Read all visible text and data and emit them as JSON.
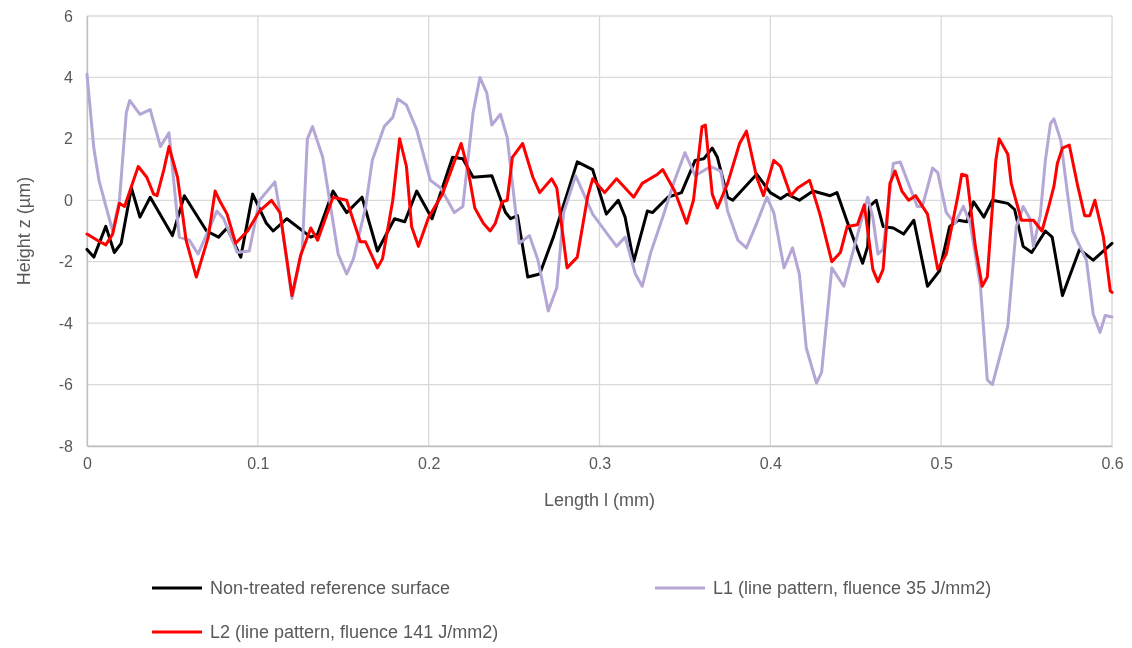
{
  "chart_data": {
    "type": "line",
    "xlabel": "Length l (mm)",
    "ylabel": "Height z (µm)",
    "xlim": [
      0,
      0.6
    ],
    "xticks": [
      0,
      0.1,
      0.2,
      0.3,
      0.4,
      0.5,
      0.6
    ],
    "ylim": [
      -8,
      6
    ],
    "yticks": [
      -8,
      -6,
      -4,
      -2,
      0,
      2,
      4,
      6
    ],
    "grid": true,
    "legend": "bottom",
    "line_style": "solid",
    "marker": "none",
    "series": [
      {
        "name": "Non-treated reference surface",
        "color": "#000000",
        "x": [
          0,
          0.004,
          0.011,
          0.016,
          0.02,
          0.026,
          0.031,
          0.037,
          0.05,
          0.057,
          0.07,
          0.077,
          0.082,
          0.09,
          0.097,
          0.105,
          0.109,
          0.117,
          0.131,
          0.135,
          0.144,
          0.152,
          0.161,
          0.17,
          0.18,
          0.186,
          0.193,
          0.202,
          0.214,
          0.22,
          0.226,
          0.237,
          0.245,
          0.248,
          0.252,
          0.258,
          0.265,
          0.273,
          0.287,
          0.296,
          0.304,
          0.311,
          0.315,
          0.32,
          0.328,
          0.331,
          0.34,
          0.348,
          0.356,
          0.361,
          0.366,
          0.369,
          0.375,
          0.378,
          0.392,
          0.4,
          0.406,
          0.41,
          0.417,
          0.425,
          0.435,
          0.439,
          0.445,
          0.454,
          0.457,
          0.458,
          0.462,
          0.466,
          0.472,
          0.478,
          0.484,
          0.492,
          0.499,
          0.505,
          0.51,
          0.515,
          0.519,
          0.525,
          0.53,
          0.539,
          0.543,
          0.548,
          0.553,
          0.561,
          0.565,
          0.571,
          0.581,
          0.589,
          0.6
        ],
        "values": [
          -1.6,
          -1.85,
          -0.85,
          -1.7,
          -1.4,
          0.4,
          -0.55,
          0.1,
          -1.15,
          0.15,
          -1.0,
          -1.2,
          -0.9,
          -1.85,
          0.2,
          -0.75,
          -1.0,
          -0.6,
          -1.2,
          -1.1,
          0.3,
          -0.4,
          0.1,
          -1.65,
          -0.6,
          -0.7,
          0.3,
          -0.6,
          1.4,
          1.35,
          0.75,
          0.8,
          -0.4,
          -0.6,
          -0.5,
          -2.5,
          -2.4,
          -1.2,
          1.25,
          1.0,
          -0.45,
          0.0,
          -0.55,
          -2.0,
          -0.35,
          -0.4,
          0.1,
          0.25,
          1.3,
          1.35,
          1.7,
          1.4,
          0.1,
          0.0,
          0.85,
          0.25,
          0.05,
          0.2,
          0.0,
          0.3,
          0.15,
          0.25,
          -0.7,
          -2.05,
          -1.5,
          -0.2,
          0.0,
          -0.85,
          -0.9,
          -1.1,
          -0.65,
          -2.8,
          -2.3,
          -0.85,
          -0.65,
          -0.7,
          -0.05,
          -0.55,
          0.0,
          -0.1,
          -0.3,
          -1.5,
          -1.7,
          -1.0,
          -1.2,
          -3.1,
          -1.6,
          -1.95,
          -1.4
        ]
      },
      {
        "name": "L1 (line pattern, fluence 35 J/mm2)",
        "color": "#b4a7d6",
        "x": [
          0,
          0.004,
          0.007,
          0.015,
          0.019,
          0.023,
          0.025,
          0.031,
          0.037,
          0.043,
          0.048,
          0.054,
          0.06,
          0.065,
          0.076,
          0.08,
          0.088,
          0.095,
          0.101,
          0.11,
          0.113,
          0.12,
          0.126,
          0.129,
          0.132,
          0.138,
          0.147,
          0.152,
          0.156,
          0.163,
          0.167,
          0.174,
          0.179,
          0.182,
          0.187,
          0.193,
          0.201,
          0.207,
          0.215,
          0.22,
          0.226,
          0.23,
          0.234,
          0.237,
          0.242,
          0.246,
          0.253,
          0.259,
          0.264,
          0.27,
          0.275,
          0.279,
          0.286,
          0.296,
          0.304,
          0.31,
          0.315,
          0.321,
          0.325,
          0.33,
          0.337,
          0.344,
          0.35,
          0.356,
          0.365,
          0.371,
          0.375,
          0.381,
          0.386,
          0.392,
          0.398,
          0.402,
          0.408,
          0.413,
          0.417,
          0.421,
          0.427,
          0.43,
          0.436,
          0.443,
          0.448,
          0.457,
          0.46,
          0.463,
          0.466,
          0.472,
          0.476,
          0.486,
          0.489,
          0.495,
          0.498,
          0.503,
          0.508,
          0.513,
          0.517,
          0.523,
          0.527,
          0.53,
          0.539,
          0.544,
          0.548,
          0.552,
          0.554,
          0.558,
          0.561,
          0.564,
          0.566,
          0.57,
          0.574,
          0.577,
          0.585,
          0.589,
          0.593,
          0.596,
          0.6
        ],
        "values": [
          4.1,
          1.7,
          0.65,
          -1.0,
          0.0,
          2.85,
          3.25,
          2.8,
          2.95,
          1.75,
          2.2,
          -1.2,
          -1.3,
          -1.75,
          -0.35,
          -0.6,
          -1.7,
          -1.65,
          0.0,
          0.6,
          -0.4,
          -3.2,
          -1.6,
          2.0,
          2.4,
          1.4,
          -1.75,
          -2.4,
          -1.9,
          -0.25,
          1.3,
          2.4,
          2.7,
          3.3,
          3.1,
          2.3,
          0.65,
          0.4,
          -0.4,
          -0.2,
          2.85,
          4.0,
          3.5,
          2.45,
          2.8,
          2.05,
          -1.4,
          -1.15,
          -1.95,
          -3.6,
          -2.85,
          -0.4,
          0.8,
          -0.45,
          -1.05,
          -1.5,
          -1.2,
          -2.4,
          -2.8,
          -1.7,
          -0.55,
          0.65,
          1.55,
          0.8,
          1.1,
          0.95,
          -0.35,
          -1.3,
          -1.55,
          -0.75,
          0.1,
          -0.4,
          -2.2,
          -1.55,
          -2.4,
          -4.8,
          -5.95,
          -5.6,
          -2.2,
          -2.8,
          -1.75,
          0.1,
          -0.55,
          -1.75,
          -1.6,
          1.2,
          1.25,
          -0.2,
          -0.2,
          1.05,
          0.9,
          -0.4,
          -0.75,
          -0.2,
          -0.75,
          -2.8,
          -5.85,
          -6.0,
          -4.1,
          -0.85,
          -0.2,
          -0.6,
          -1.5,
          -0.5,
          1.3,
          2.5,
          2.65,
          1.95,
          0.2,
          -1.0,
          -1.95,
          -3.7,
          -4.3,
          -3.75,
          -3.8
        ]
      },
      {
        "name": "L2 (line pattern, fluence 141 J/mm2)",
        "color": "#ff0000",
        "x": [
          0,
          0.006,
          0.011,
          0.015,
          0.019,
          0.022,
          0.03,
          0.035,
          0.039,
          0.041,
          0.045,
          0.048,
          0.053,
          0.058,
          0.064,
          0.071,
          0.075,
          0.078,
          0.082,
          0.087,
          0.094,
          0.101,
          0.108,
          0.113,
          0.12,
          0.125,
          0.131,
          0.135,
          0.144,
          0.152,
          0.16,
          0.163,
          0.17,
          0.173,
          0.179,
          0.183,
          0.187,
          0.19,
          0.194,
          0.2,
          0.208,
          0.219,
          0.223,
          0.227,
          0.232,
          0.236,
          0.239,
          0.243,
          0.246,
          0.249,
          0.255,
          0.261,
          0.265,
          0.272,
          0.275,
          0.281,
          0.287,
          0.293,
          0.296,
          0.303,
          0.31,
          0.32,
          0.325,
          0.334,
          0.337,
          0.344,
          0.351,
          0.355,
          0.36,
          0.362,
          0.366,
          0.369,
          0.375,
          0.382,
          0.386,
          0.392,
          0.396,
          0.402,
          0.406,
          0.412,
          0.416,
          0.423,
          0.429,
          0.436,
          0.441,
          0.445,
          0.451,
          0.455,
          0.46,
          0.463,
          0.466,
          0.47,
          0.473,
          0.477,
          0.481,
          0.485,
          0.492,
          0.498,
          0.503,
          0.51,
          0.512,
          0.515,
          0.52,
          0.524,
          0.527,
          0.532,
          0.534,
          0.539,
          0.541,
          0.547,
          0.554,
          0.559,
          0.563,
          0.566,
          0.568,
          0.571,
          0.575,
          0.58,
          0.584,
          0.587,
          0.59,
          0.595,
          0.599,
          0.6
        ],
        "values": [
          -1.1,
          -1.3,
          -1.45,
          -1.1,
          -0.1,
          -0.2,
          1.1,
          0.75,
          0.2,
          0.15,
          1.0,
          1.75,
          0.75,
          -1.3,
          -2.5,
          -1.2,
          0.3,
          -0.05,
          -0.45,
          -1.4,
          -1.0,
          -0.35,
          0.0,
          -0.4,
          -3.1,
          -1.8,
          -0.9,
          -1.3,
          0.1,
          0.0,
          -1.35,
          -1.35,
          -2.2,
          -1.9,
          0.0,
          2.0,
          1.1,
          -0.85,
          -1.5,
          -0.55,
          0.2,
          1.85,
          1.0,
          -0.25,
          -0.75,
          -1.0,
          -0.75,
          -0.05,
          0.0,
          1.4,
          1.85,
          0.75,
          0.25,
          0.7,
          0.4,
          -2.2,
          -1.85,
          0.1,
          0.7,
          0.25,
          0.7,
          0.1,
          0.55,
          0.85,
          1.0,
          0.3,
          -0.75,
          0.0,
          2.4,
          2.45,
          0.2,
          -0.25,
          0.55,
          1.85,
          2.25,
          0.75,
          0.15,
          1.3,
          1.1,
          0.15,
          0.4,
          0.65,
          -0.45,
          -2.0,
          -1.7,
          -0.85,
          -0.8,
          -0.15,
          -2.25,
          -2.65,
          -2.25,
          0.55,
          0.95,
          0.3,
          0.0,
          0.15,
          -0.45,
          -2.25,
          -1.75,
          0.2,
          0.85,
          0.8,
          -1.5,
          -2.8,
          -2.5,
          1.3,
          2.0,
          1.5,
          0.55,
          -0.65,
          -0.65,
          -1.0,
          -0.2,
          0.45,
          1.2,
          1.7,
          1.8,
          0.45,
          -0.5,
          -0.5,
          0.0,
          -1.2,
          -2.95,
          -3.0
        ]
      }
    ]
  }
}
